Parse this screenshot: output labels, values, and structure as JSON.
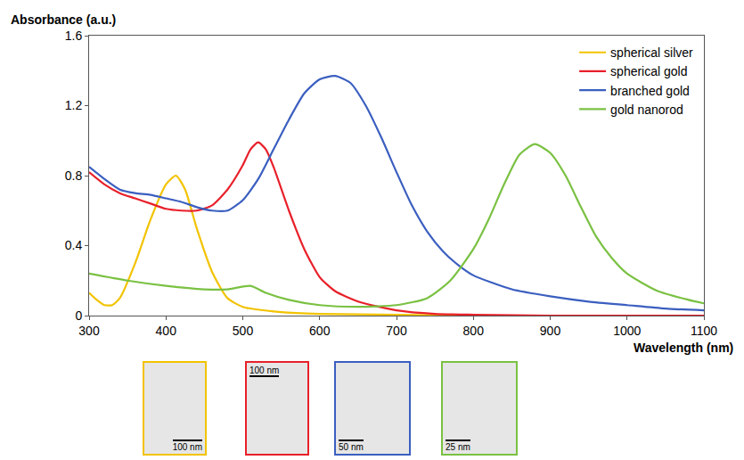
{
  "chart_data": {
    "type": "line",
    "y_label": "Absorbance (a.u.)",
    "x_label": "Wavelength (nm)",
    "xlim": [
      300,
      1100
    ],
    "xticks": [
      300,
      400,
      500,
      600,
      700,
      800,
      900,
      1000,
      1100
    ],
    "ylim": [
      0,
      1.6
    ],
    "yticks": [
      0,
      0.4,
      0.8,
      1.2,
      1.6
    ],
    "grid": false,
    "legend": "top right",
    "series": [
      {
        "name": "spherical silver",
        "color": "#f2c300",
        "x": [
          300,
          310,
          320,
          330,
          340,
          360,
          380,
          400,
          413,
          425,
          440,
          460,
          480,
          500,
          550,
          600,
          700,
          800,
          1100
        ],
        "values": [
          0.13,
          0.09,
          0.06,
          0.06,
          0.1,
          0.3,
          0.55,
          0.75,
          0.8,
          0.72,
          0.5,
          0.25,
          0.1,
          0.05,
          0.02,
          0.01,
          0.005,
          0,
          0
        ]
      },
      {
        "name": "spherical gold",
        "color": "#e8202a",
        "x": [
          300,
          320,
          340,
          360,
          380,
          400,
          420,
          440,
          460,
          480,
          500,
          510,
          520,
          530,
          540,
          560,
          580,
          600,
          620,
          650,
          700,
          750,
          800,
          900,
          1100
        ],
        "values": [
          0.82,
          0.75,
          0.7,
          0.67,
          0.64,
          0.61,
          0.6,
          0.6,
          0.63,
          0.72,
          0.86,
          0.95,
          0.99,
          0.95,
          0.85,
          0.6,
          0.38,
          0.22,
          0.14,
          0.08,
          0.03,
          0.01,
          0.005,
          0,
          0
        ]
      },
      {
        "name": "branched gold",
        "color": "#3b5fc0",
        "x": [
          300,
          320,
          340,
          360,
          380,
          400,
          420,
          440,
          460,
          480,
          500,
          520,
          540,
          560,
          580,
          600,
          620,
          640,
          660,
          680,
          700,
          720,
          740,
          760,
          780,
          800,
          850,
          900,
          950,
          1000,
          1050,
          1100
        ],
        "values": [
          0.85,
          0.78,
          0.72,
          0.7,
          0.69,
          0.67,
          0.65,
          0.62,
          0.6,
          0.6,
          0.66,
          0.78,
          0.95,
          1.12,
          1.27,
          1.35,
          1.37,
          1.33,
          1.2,
          1.02,
          0.82,
          0.63,
          0.48,
          0.37,
          0.29,
          0.23,
          0.15,
          0.11,
          0.08,
          0.06,
          0.04,
          0.03
        ]
      },
      {
        "name": "gold nanorod",
        "color": "#7ac142",
        "x": [
          300,
          350,
          400,
          450,
          480,
          510,
          530,
          560,
          600,
          650,
          700,
          740,
          770,
          800,
          820,
          840,
          860,
          880,
          900,
          920,
          940,
          960,
          980,
          1000,
          1040,
          1080,
          1100
        ],
        "values": [
          0.24,
          0.2,
          0.17,
          0.15,
          0.15,
          0.17,
          0.13,
          0.09,
          0.06,
          0.05,
          0.06,
          0.1,
          0.2,
          0.38,
          0.55,
          0.75,
          0.92,
          0.98,
          0.93,
          0.8,
          0.62,
          0.45,
          0.33,
          0.24,
          0.14,
          0.09,
          0.07
        ]
      }
    ],
    "inset_scale_bars": [
      "100 nm",
      "100 nm",
      "50 nm",
      "25 nm"
    ]
  }
}
